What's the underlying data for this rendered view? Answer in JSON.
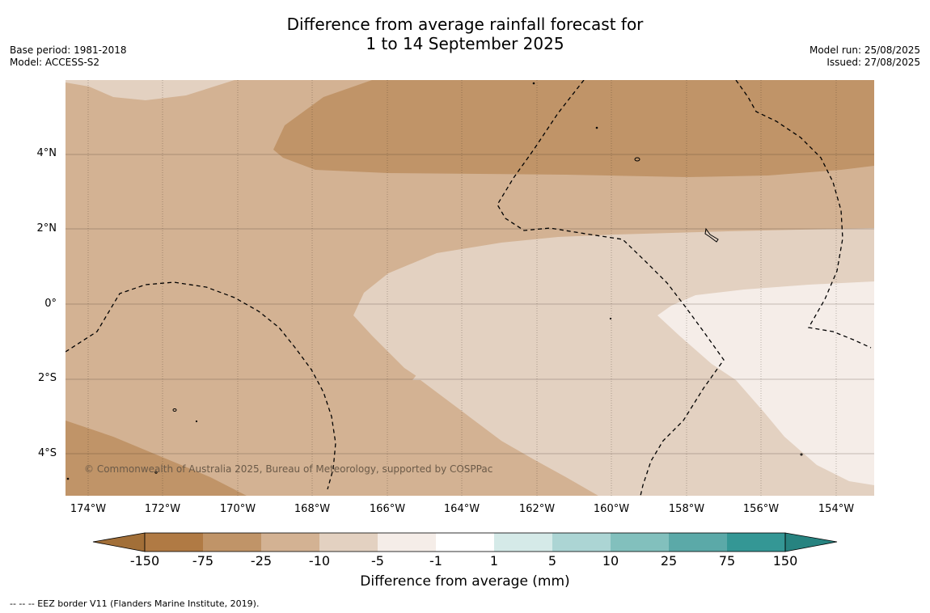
{
  "header": {
    "title_line1": "Difference from average rainfall forecast for",
    "title_line2": "1 to 14 September 2025",
    "base_period": "Base period: 1981-2018",
    "model": "Model: ACCESS-S2",
    "model_run": "Model run: 25/08/2025",
    "issued": "Issued: 27/08/2025"
  },
  "map": {
    "latitude_labels": [
      "4°N",
      "2°N",
      "0°",
      "2°S",
      "4°S"
    ],
    "longitude_labels": [
      "174°W",
      "172°W",
      "170°W",
      "168°W",
      "166°W",
      "164°W",
      "162°W",
      "160°W",
      "158°W",
      "156°W",
      "154°W"
    ],
    "copyright": "© Commonwealth of Australia 2025, Bureau of Meteorology, supported by COSPPac",
    "colors": {
      "minus_75_to_minus_25": "#c09468",
      "minus_25_to_minus_10": "#d3b293",
      "minus_10_to_minus_5": "#e3d1c1",
      "minus_5_to_minus_1": "#f5ede8"
    }
  },
  "colorbar": {
    "title": "Difference from average (mm)",
    "tick_labels": [
      "-150",
      "-75",
      "-25",
      "-10",
      "-5",
      "-1",
      "1",
      "5",
      "10",
      "25",
      "75",
      "150"
    ],
    "colors": [
      "#a26f38",
      "#b07a44",
      "#c09468",
      "#d3b293",
      "#e3d1c1",
      "#f5ede8",
      "#ffffff",
      "#d5eae8",
      "#acd5d4",
      "#82c0bd",
      "#5ba9a8",
      "#349795",
      "#278380"
    ]
  },
  "footer": {
    "eez_legend": "--  --  -- EEZ border V11 (Flanders Marine Institute, 2019)."
  }
}
